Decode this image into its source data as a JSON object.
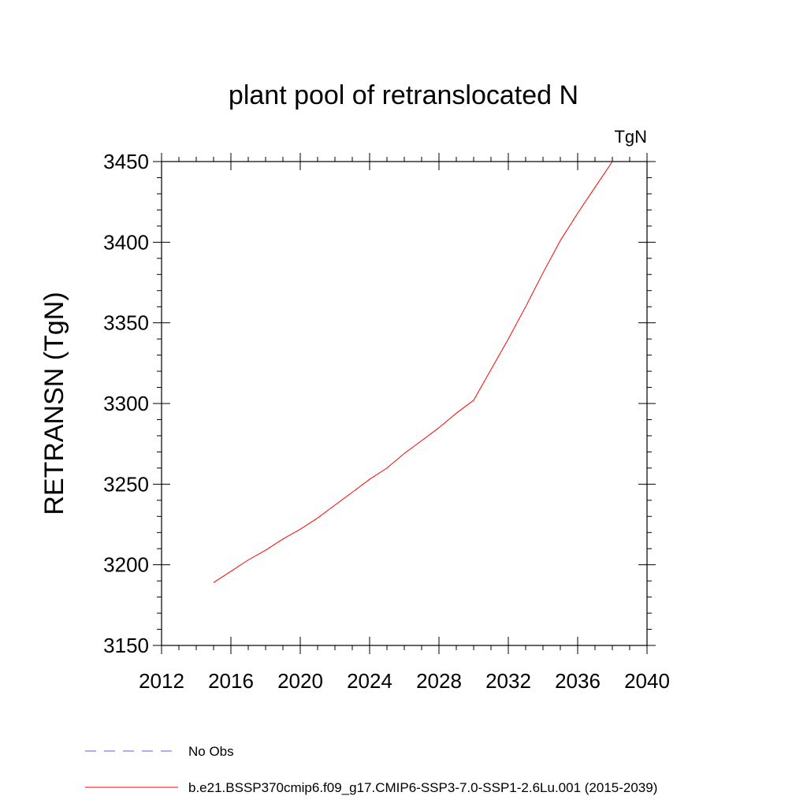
{
  "chart_data": {
    "type": "line",
    "title": "plant pool of retranslocated N",
    "units_label": "TgN",
    "ylabel": "RETRANSN  (TgN)",
    "xlabel": "",
    "xlim": [
      2012,
      2040
    ],
    "ylim": [
      3150,
      3450
    ],
    "x_ticks": [
      2012,
      2016,
      2020,
      2024,
      2028,
      2032,
      2036,
      2040
    ],
    "y_ticks": [
      3150,
      3200,
      3250,
      3300,
      3350,
      3400,
      3450
    ],
    "grid": false,
    "legend_placement": "bottom-left",
    "series": [
      {
        "name": "b.e21.BSSP370cmip6.f09_g17.CMIP6-SSP3-7.0-SSP1-2.6Lu.001 (2015-2039)",
        "color": "#ff0000",
        "style": "solid",
        "x": [
          2015,
          2016,
          2017,
          2018,
          2019,
          2020,
          2021,
          2022,
          2023,
          2024,
          2025,
          2026,
          2027,
          2028,
          2029,
          2030,
          2031,
          2032,
          2033,
          2034,
          2035,
          2036,
          2037,
          2038,
          2039
        ],
        "y": [
          3189,
          3196,
          3203,
          3209,
          3216,
          3222,
          3229,
          3237,
          3245,
          3253,
          3260,
          3269,
          3277,
          3285,
          3294,
          3302,
          3321,
          3340,
          3360,
          3381,
          3401,
          3418,
          3434,
          3450,
          3467
        ]
      }
    ],
    "legend": [
      {
        "label": "No Obs",
        "color": "#6a5acd",
        "style": "dashed"
      },
      {
        "label": "b.e21.BSSP370cmip6.f09_g17.CMIP6-SSP3-7.0-SSP1-2.6Lu.001 (2015-2039)",
        "color": "#ff0000",
        "style": "solid"
      }
    ]
  }
}
